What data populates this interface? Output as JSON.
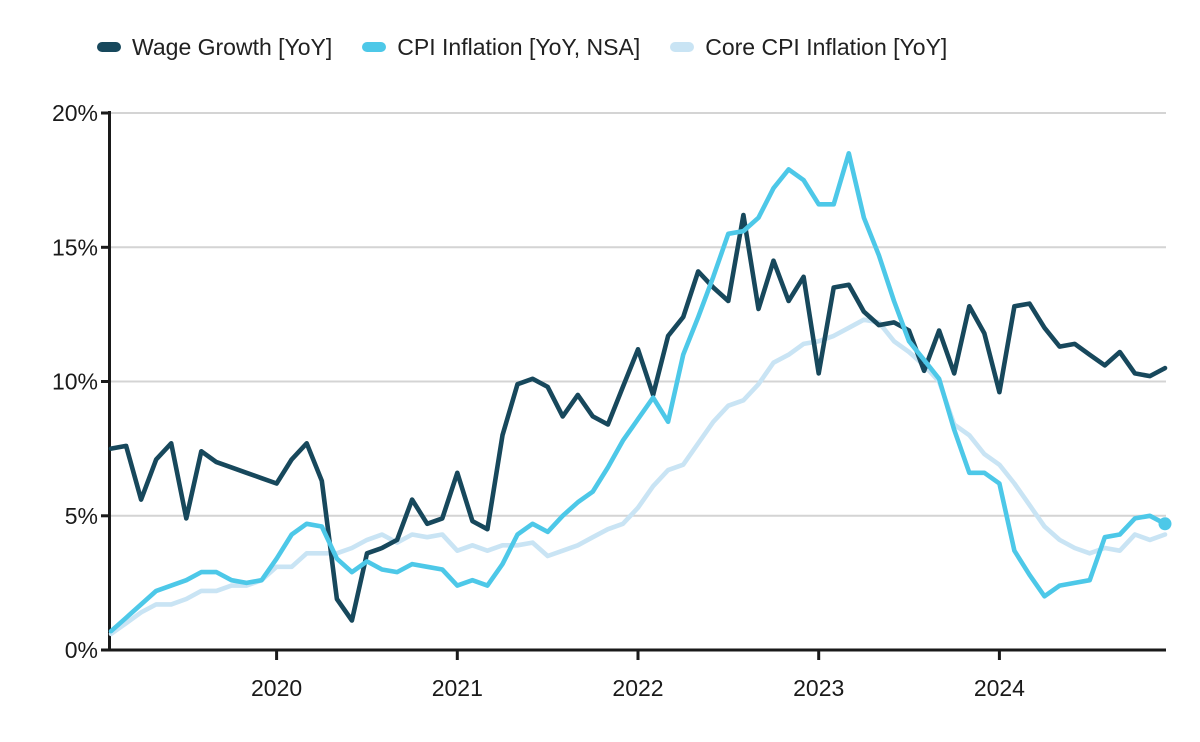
{
  "legend": {
    "items": [
      {
        "label": "Wage Growth [YoY]",
        "color": "#17485c"
      },
      {
        "label": "CPI Inflation [YoY, NSA]",
        "color": "#4dc8e8"
      },
      {
        "label": "Core CPI Inflation [YoY]",
        "color": "#c9e4f4"
      }
    ]
  },
  "chart_data": {
    "type": "line",
    "title": "",
    "x_unit": "month",
    "x_start": "2019-01",
    "x_end": "2024-11",
    "x_tick_labels": [
      "2020",
      "2021",
      "2022",
      "2023",
      "2024"
    ],
    "x_tick_years": [
      2020,
      2021,
      2022,
      2023,
      2024
    ],
    "y_tick_labels": [
      "0%",
      "5%",
      "10%",
      "15%",
      "20%"
    ],
    "y_ticks": [
      0,
      5,
      10,
      15,
      20
    ],
    "ylim": [
      0,
      20
    ],
    "grid": "horizontal",
    "legend_position": "top-left",
    "series": [
      {
        "name": "Wage Growth [YoY]",
        "color": "#17485c",
        "end_marker": false,
        "values": [
          7.5,
          7.6,
          5.6,
          7.1,
          7.7,
          4.9,
          7.4,
          7.0,
          6.8,
          6.6,
          6.4,
          6.2,
          7.1,
          7.7,
          6.3,
          1.9,
          1.1,
          3.6,
          3.8,
          4.1,
          5.6,
          4.7,
          4.9,
          6.6,
          4.8,
          4.5,
          8.0,
          9.9,
          10.1,
          9.8,
          8.7,
          9.5,
          8.7,
          8.4,
          9.8,
          11.2,
          9.5,
          11.7,
          12.4,
          14.1,
          13.5,
          13.0,
          16.2,
          12.7,
          14.5,
          13.0,
          13.9,
          10.3,
          13.5,
          13.6,
          12.6,
          12.1,
          12.2,
          11.9,
          10.4,
          11.9,
          10.3,
          12.8,
          11.8,
          9.6,
          12.8,
          12.9,
          12.0,
          11.3,
          11.4,
          11.0,
          10.6,
          11.1,
          10.3,
          10.2,
          10.5
        ]
      },
      {
        "name": "CPI Inflation [YoY, NSA]",
        "color": "#4dc8e8",
        "end_marker": true,
        "values": [
          0.7,
          1.2,
          1.7,
          2.2,
          2.4,
          2.6,
          2.9,
          2.9,
          2.6,
          2.5,
          2.6,
          3.4,
          4.3,
          4.7,
          4.6,
          3.4,
          2.9,
          3.3,
          3.0,
          2.9,
          3.2,
          3.1,
          3.0,
          2.4,
          2.6,
          2.4,
          3.2,
          4.3,
          4.7,
          4.4,
          5.0,
          5.5,
          5.9,
          6.8,
          7.8,
          8.6,
          9.4,
          8.5,
          11.0,
          12.4,
          13.9,
          15.5,
          15.6,
          16.1,
          17.2,
          17.9,
          17.5,
          16.6,
          16.6,
          18.5,
          16.1,
          14.7,
          13.0,
          11.5,
          10.8,
          10.1,
          8.2,
          6.6,
          6.6,
          6.2,
          3.7,
          2.8,
          2.0,
          2.4,
          2.5,
          2.6,
          4.2,
          4.3,
          4.9,
          5.0,
          4.7
        ]
      },
      {
        "name": "Core CPI Inflation [YoY]",
        "color": "#c9e4f4",
        "end_marker": false,
        "values": [
          0.6,
          1.0,
          1.4,
          1.7,
          1.7,
          1.9,
          2.2,
          2.2,
          2.4,
          2.4,
          2.6,
          3.1,
          3.1,
          3.6,
          3.6,
          3.6,
          3.8,
          4.1,
          4.3,
          4.0,
          4.3,
          4.2,
          4.3,
          3.7,
          3.9,
          3.7,
          3.9,
          3.9,
          4.0,
          3.5,
          3.7,
          3.9,
          4.2,
          4.5,
          4.7,
          5.3,
          6.1,
          6.7,
          6.9,
          7.7,
          8.5,
          9.1,
          9.3,
          9.9,
          10.7,
          11.0,
          11.4,
          11.5,
          11.7,
          12.0,
          12.3,
          12.2,
          11.5,
          11.1,
          10.6,
          10.0,
          8.4,
          8.0,
          7.3,
          6.9,
          6.2,
          5.4,
          4.6,
          4.1,
          3.8,
          3.6,
          3.8,
          3.7,
          4.3,
          4.1,
          4.3
        ]
      }
    ],
    "style": {
      "grid_color": "#d4d4d4",
      "axis_color": "#1a1a1a",
      "label_color": "#1a1a1a",
      "background": "#ffffff",
      "line_width": 4.6,
      "end_marker_radius": 6.5
    }
  }
}
